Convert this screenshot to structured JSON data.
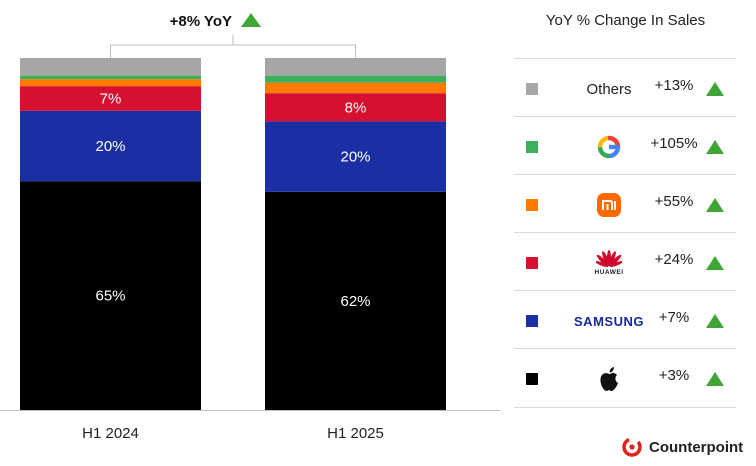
{
  "chart_data": {
    "type": "stacked-bar",
    "categories": [
      "H1 2024",
      "H1 2025"
    ],
    "series": [
      {
        "name": "Apple",
        "color": "#000000",
        "values": [
          65,
          62
        ]
      },
      {
        "name": "Samsung",
        "color": "#1a2fa4",
        "values": [
          20,
          20
        ]
      },
      {
        "name": "Huawei",
        "color": "#d6102f",
        "values": [
          7,
          8
        ]
      },
      {
        "name": "Xiaomi",
        "color": "#ff7a00",
        "values": [
          2,
          3
        ]
      },
      {
        "name": "Google",
        "color": "#3dae5a",
        "values": [
          1,
          2
        ]
      },
      {
        "name": "Others",
        "color": "#a6a6a6",
        "values": [
          5,
          5
        ]
      }
    ],
    "data_labels": {
      "H1 2024": {
        "Apple": "65%",
        "Samsung": "20%",
        "Huawei": "7%"
      },
      "H1 2025": {
        "Apple": "62%",
        "Samsung": "20%",
        "Huawei": "8%"
      }
    },
    "annotation": "+8% YoY",
    "ylim": [
      0,
      100
    ]
  },
  "legend": {
    "title": "YoY % Change In Sales",
    "items": [
      {
        "key": "others",
        "label": "Others",
        "color": "#a6a6a6",
        "change": "+13%"
      },
      {
        "key": "google",
        "label": "",
        "icon": "google-logo-icon",
        "color": "#3dae5a",
        "change": "+105%"
      },
      {
        "key": "xiaomi",
        "label": "mi",
        "icon": "xiaomi-logo-icon",
        "color": "#ff7a00",
        "change": "+55%"
      },
      {
        "key": "huawei",
        "label": "HUAWEI",
        "icon": "huawei-logo-icon",
        "color": "#d6102f",
        "change": "+24%"
      },
      {
        "key": "samsung",
        "label": "SAMSUNG",
        "color": "#1a2fa4",
        "change": "+7%"
      },
      {
        "key": "apple",
        "label": "",
        "icon": "apple-logo-icon",
        "color": "#000000",
        "change": "+3%"
      }
    ]
  },
  "brand": {
    "name": "Counterpoint",
    "accent": "#e2231a"
  }
}
